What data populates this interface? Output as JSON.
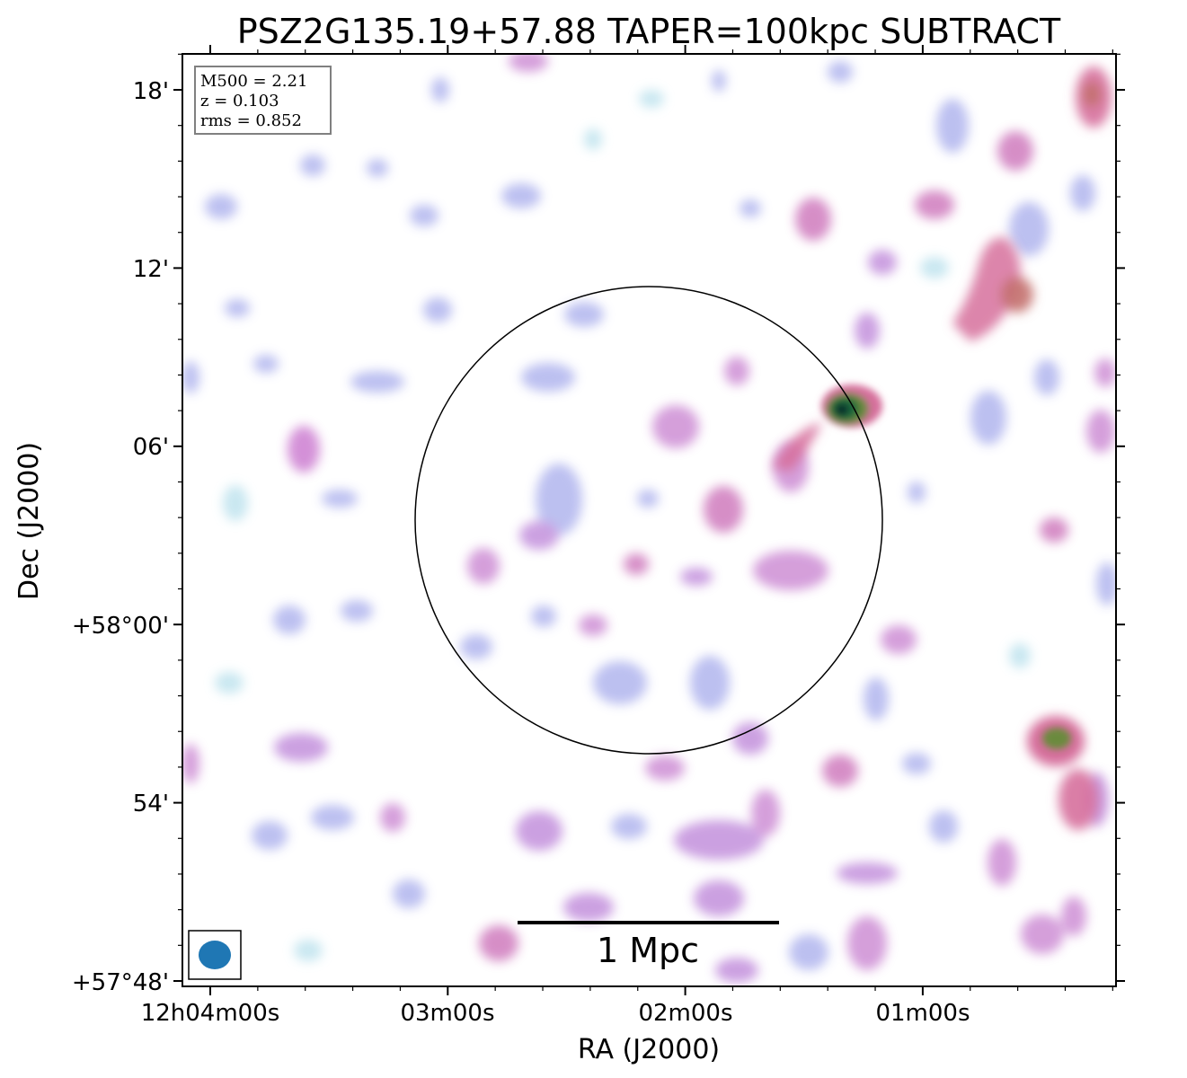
{
  "chart_data": {
    "type": "heatmap",
    "title": "PSZ2G135.19+57.88 TAPER=100kpc SUBTRACT",
    "xlabel": "RA (J2000)",
    "ylabel": "Dec (J2000)",
    "x_ticks": [
      {
        "value": "12h04m00s",
        "label": "12h04m00s"
      },
      {
        "value": "12h03m00s",
        "label": "03m00s"
      },
      {
        "value": "12h02m00s",
        "label": "02m00s"
      },
      {
        "value": "12h01m00s",
        "label": "01m00s"
      }
    ],
    "y_ticks": [
      {
        "value": "+58d18m",
        "label": "18'"
      },
      {
        "value": "+58d12m",
        "label": "12'"
      },
      {
        "value": "+58d06m",
        "label": "06'"
      },
      {
        "value": "+58d00m",
        "label": "+58°00'"
      },
      {
        "value": "+57d54m",
        "label": "54'"
      },
      {
        "value": "+57d48m",
        "label": "+57°48'"
      }
    ],
    "info_box": [
      "M500 = 2.21",
      "z = 0.103",
      "rms = 0.852"
    ],
    "scale_bar_label": "1 Mpc",
    "colormap_colors": [
      "#ffffff",
      "#b8e2ee",
      "#b3b8ef",
      "#c98ed8",
      "#d6709c",
      "#c4716f",
      "#6a8a3d",
      "#1e6b3c",
      "#0c2e2a"
    ],
    "beam_color": "#1f77b4"
  }
}
